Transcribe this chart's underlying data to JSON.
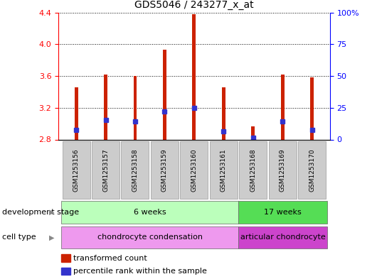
{
  "title": "GDS5046 / 243277_x_at",
  "samples": [
    "GSM1253156",
    "GSM1253157",
    "GSM1253158",
    "GSM1253159",
    "GSM1253160",
    "GSM1253161",
    "GSM1253168",
    "GSM1253169",
    "GSM1253170"
  ],
  "red_tops": [
    3.46,
    3.62,
    3.6,
    3.93,
    4.38,
    3.46,
    2.97,
    3.62,
    3.58
  ],
  "blue_vals": [
    2.92,
    3.05,
    3.03,
    3.15,
    3.2,
    2.9,
    2.82,
    3.03,
    2.92
  ],
  "baseline": 2.8,
  "ylim": [
    2.8,
    4.4
  ],
  "yticks": [
    2.8,
    3.2,
    3.6,
    4.0,
    4.4
  ],
  "right_yticks": [
    0,
    25,
    50,
    75,
    100
  ],
  "bar_color": "#cc2200",
  "blue_color": "#3333cc",
  "background_color": "#ffffff",
  "grid_color": "#000000",
  "dev_stage_groups": [
    {
      "label": "6 weeks",
      "start": 0,
      "end": 5,
      "color": "#bbffbb"
    },
    {
      "label": "17 weeks",
      "start": 6,
      "end": 8,
      "color": "#55dd55"
    }
  ],
  "cell_type_groups": [
    {
      "label": "chondrocyte condensation",
      "start": 0,
      "end": 5,
      "color": "#ee99ee"
    },
    {
      "label": "articular chondrocyte",
      "start": 6,
      "end": 8,
      "color": "#cc44cc"
    }
  ],
  "dev_stage_label": "development stage",
  "cell_type_label": "cell type",
  "legend_items": [
    {
      "color": "#cc2200",
      "label": "transformed count"
    },
    {
      "color": "#3333cc",
      "label": "percentile rank within the sample"
    }
  ]
}
